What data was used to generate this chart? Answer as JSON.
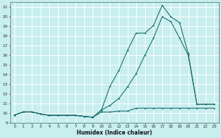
{
  "title": "",
  "xlabel": "Humidex (Indice chaleur)",
  "background_color": "#c8eeee",
  "grid_color": "#b0d8d8",
  "line_color": "#1a6b6b",
  "xlim": [
    -0.5,
    23.5
  ],
  "ylim": [
    9,
    21.5
  ],
  "xticks": [
    0,
    1,
    2,
    3,
    4,
    5,
    6,
    7,
    8,
    9,
    10,
    11,
    12,
    13,
    14,
    15,
    16,
    17,
    18,
    19,
    20,
    21,
    22,
    23
  ],
  "yticks": [
    9,
    10,
    11,
    12,
    13,
    14,
    15,
    16,
    17,
    18,
    19,
    20,
    21
  ],
  "series1_x": [
    0,
    1,
    2,
    3,
    4,
    5,
    6,
    7,
    8,
    9,
    10,
    11,
    12,
    13,
    14,
    15,
    16,
    17,
    18,
    19,
    20,
    21,
    22,
    23
  ],
  "series1_y": [
    9.8,
    10.1,
    10.1,
    9.9,
    9.75,
    9.75,
    9.75,
    9.75,
    9.65,
    9.55,
    10.3,
    12.8,
    14.4,
    16.5,
    18.3,
    18.3,
    19.1,
    21.2,
    20.0,
    19.4,
    16.2,
    10.9,
    10.9,
    10.9
  ],
  "series2_x": [
    0,
    1,
    2,
    3,
    4,
    5,
    6,
    7,
    8,
    9,
    10,
    11,
    12,
    13,
    14,
    15,
    16,
    17,
    18,
    19,
    20,
    21,
    22,
    23
  ],
  "series2_y": [
    9.8,
    10.1,
    10.1,
    9.9,
    9.75,
    9.75,
    9.75,
    9.75,
    9.65,
    9.55,
    10.1,
    10.1,
    10.2,
    10.2,
    10.5,
    10.5,
    10.5,
    10.5,
    10.5,
    10.5,
    10.5,
    10.5,
    10.5,
    10.5
  ],
  "series3_x": [
    0,
    1,
    2,
    3,
    4,
    5,
    6,
    7,
    8,
    9,
    10,
    11,
    12,
    13,
    14,
    15,
    16,
    17,
    18,
    19,
    20,
    21,
    22,
    23
  ],
  "series3_y": [
    9.8,
    10.1,
    10.1,
    9.9,
    9.75,
    9.75,
    9.75,
    9.75,
    9.65,
    9.55,
    10.3,
    10.8,
    11.5,
    12.7,
    14.1,
    16.0,
    17.8,
    20.0,
    19.5,
    17.8,
    16.0,
    10.9,
    10.9,
    10.9
  ]
}
